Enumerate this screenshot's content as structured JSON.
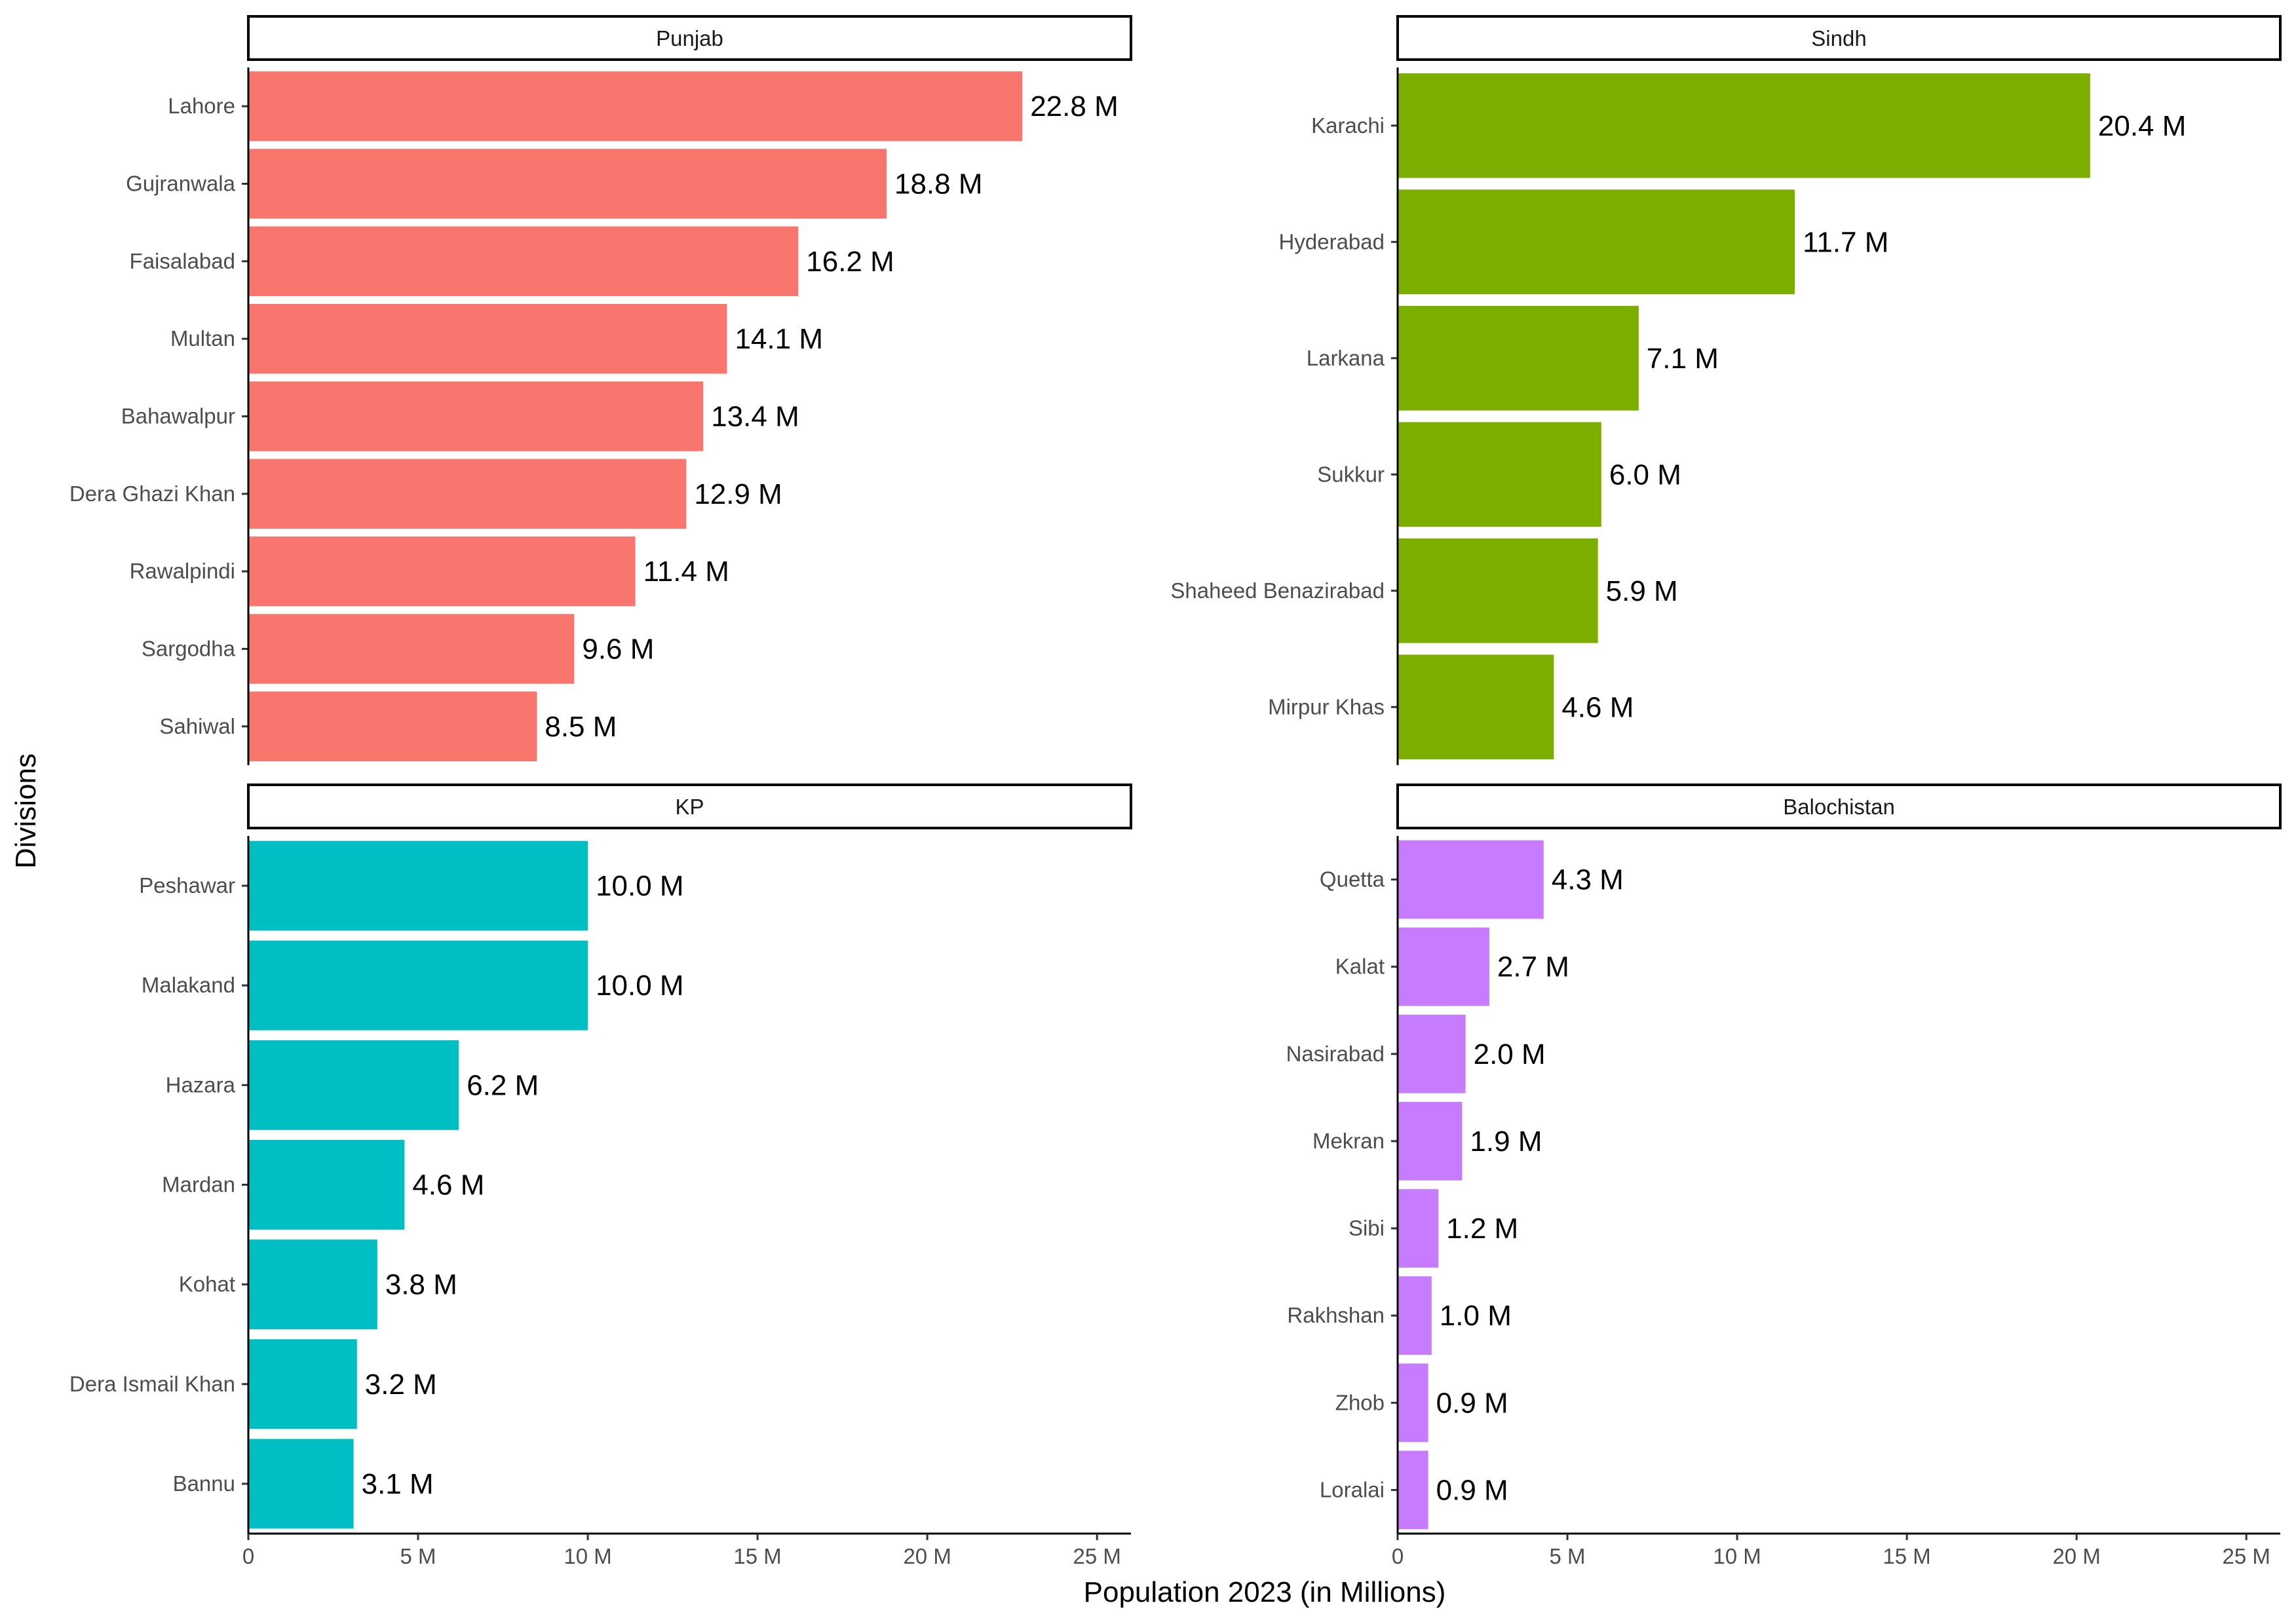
{
  "chart_data": {
    "type": "bar",
    "orientation": "horizontal",
    "facet": "2x2",
    "xlabel": "Population 2023 (in Millions)",
    "ylabel": "Divisions",
    "xlim": [
      0,
      26
    ],
    "x_ticks": [
      0,
      5,
      10,
      15,
      20,
      25
    ],
    "x_tick_labels": [
      "0",
      "5 M",
      "10 M",
      "15 M",
      "20 M",
      "25 M"
    ],
    "grid": false,
    "legend": "none",
    "panels": [
      {
        "title": "Punjab",
        "color": "#F8766D",
        "categories": [
          "Lahore",
          "Gujranwala",
          "Faisalabad",
          "Multan",
          "Bahawalpur",
          "Dera Ghazi Khan",
          "Rawalpindi",
          "Sargodha",
          "Sahiwal"
        ],
        "values": [
          22.8,
          18.8,
          16.2,
          14.1,
          13.4,
          12.9,
          11.4,
          9.6,
          8.5
        ],
        "labels": [
          "22.8 M",
          "18.8 M",
          "16.2 M",
          "14.1 M",
          "13.4 M",
          "12.9 M",
          "11.4 M",
          "9.6 M",
          "8.5 M"
        ]
      },
      {
        "title": "Sindh",
        "color": "#7CAE00",
        "categories": [
          "Karachi",
          "Hyderabad",
          "Larkana",
          "Sukkur",
          "Shaheed Benazirabad",
          "Mirpur Khas"
        ],
        "values": [
          20.4,
          11.7,
          7.1,
          6.0,
          5.9,
          4.6
        ],
        "labels": [
          "20.4 M",
          "11.7 M",
          "7.1 M",
          "6.0 M",
          "5.9 M",
          "4.6 M"
        ]
      },
      {
        "title": "KP",
        "color": "#00BFC4",
        "categories": [
          "Peshawar",
          "Malakand",
          "Hazara",
          "Mardan",
          "Kohat",
          "Dera Ismail Khan",
          "Bannu"
        ],
        "values": [
          10.0,
          10.0,
          6.2,
          4.6,
          3.8,
          3.2,
          3.1
        ],
        "labels": [
          "10.0 M",
          "10.0 M",
          "6.2 M",
          "4.6 M",
          "3.8 M",
          "3.2 M",
          "3.1 M"
        ]
      },
      {
        "title": "Balochistan",
        "color": "#C77CFF",
        "categories": [
          "Quetta",
          "Kalat",
          "Nasirabad",
          "Mekran",
          "Sibi",
          "Rakhshan",
          "Zhob",
          "Loralai"
        ],
        "values": [
          4.3,
          2.7,
          2.0,
          1.9,
          1.2,
          1.0,
          0.9,
          0.9
        ],
        "labels": [
          "4.3 M",
          "2.7 M",
          "2.0 M",
          "1.9 M",
          "1.2 M",
          "1.0 M",
          "0.9 M",
          "0.9 M"
        ]
      }
    ]
  }
}
